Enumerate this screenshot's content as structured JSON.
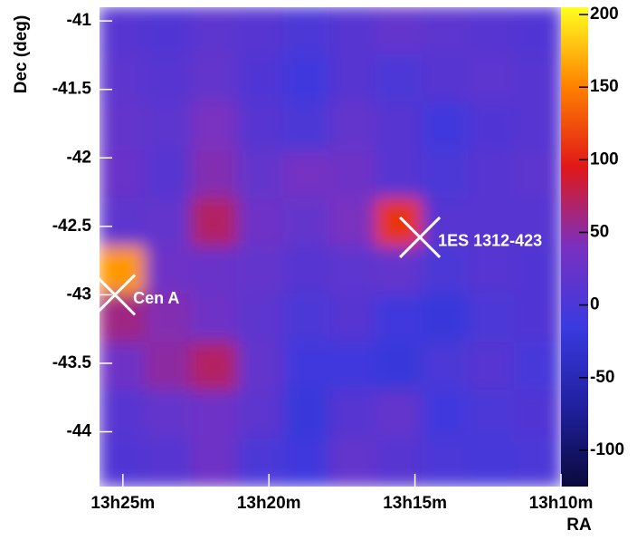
{
  "chart_data": {
    "type": "heatmap",
    "x_label": "RA",
    "y_label": "Dec (deg)",
    "xlim": [
      25.8,
      10
    ],
    "xticks": [
      {
        "value": 25,
        "label": "13h25m"
      },
      {
        "value": 20,
        "label": "13h20m"
      },
      {
        "value": 15,
        "label": "13h15m"
      },
      {
        "value": 10,
        "label": "13h10m"
      }
    ],
    "ylim": [
      -44.4,
      -40.9
    ],
    "yticks": [
      -41,
      -41.5,
      -42,
      -42.5,
      -43,
      -43.5,
      -44
    ],
    "clim": [
      -125,
      205
    ],
    "cticks": [
      200,
      150,
      100,
      50,
      0,
      -50,
      -100
    ],
    "colormap": [
      "#0a0a3c",
      "#2020a0",
      "#3a3ae0",
      "#7a30c0",
      "#e01818",
      "#ff8000",
      "#ffff20"
    ],
    "z": [
      [
        10,
        5,
        15,
        10,
        0,
        10,
        20,
        15,
        10,
        5
      ],
      [
        15,
        10,
        20,
        5,
        -10,
        10,
        0,
        10,
        15,
        10
      ],
      [
        20,
        15,
        40,
        10,
        0,
        20,
        10,
        -10,
        5,
        10
      ],
      [
        25,
        10,
        45,
        20,
        35,
        30,
        10,
        0,
        10,
        15
      ],
      [
        15,
        20,
        70,
        30,
        20,
        40,
        110,
        10,
        10,
        10
      ],
      [
        160,
        30,
        25,
        20,
        10,
        15,
        20,
        0,
        10,
        5
      ],
      [
        60,
        45,
        30,
        15,
        0,
        10,
        -10,
        -20,
        0,
        5
      ],
      [
        30,
        50,
        70,
        20,
        -10,
        -10,
        -20,
        0,
        10,
        -5
      ],
      [
        10,
        20,
        30,
        15,
        -20,
        10,
        20,
        -10,
        0,
        5
      ],
      [
        5,
        10,
        30,
        0,
        -10,
        20,
        10,
        0,
        -5,
        0
      ]
    ],
    "annotations": [
      {
        "text": "Cen A",
        "x": 25.27,
        "y": -43.0
      },
      {
        "text": "1ES 1312-423",
        "x": 14.83,
        "y": -42.58
      }
    ]
  }
}
